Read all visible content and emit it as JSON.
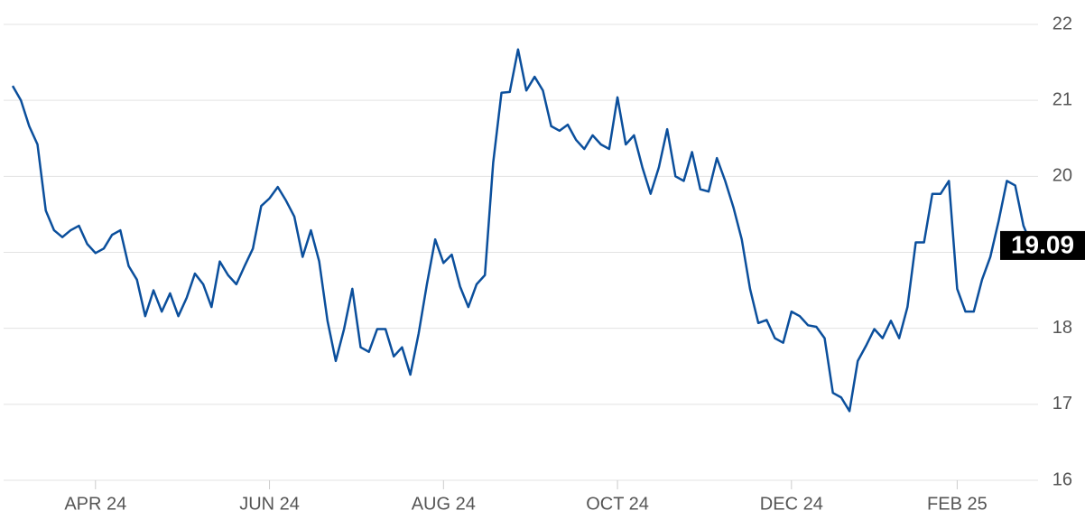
{
  "chart_data": {
    "type": "line",
    "categories": [
      null,
      null,
      null,
      null,
      null,
      null,
      null,
      null,
      null,
      null,
      "APR 24",
      null,
      null,
      null,
      null,
      null,
      null,
      null,
      null,
      null,
      null,
      null,
      null,
      null,
      null,
      null,
      null,
      null,
      null,
      null,
      null,
      "JUN 24",
      null,
      null,
      null,
      null,
      null,
      null,
      null,
      null,
      null,
      null,
      null,
      null,
      null,
      null,
      null,
      null,
      null,
      null,
      null,
      null,
      "AUG 24",
      null,
      null,
      null,
      null,
      null,
      null,
      null,
      null,
      null,
      null,
      null,
      null,
      null,
      null,
      null,
      null,
      null,
      null,
      null,
      null,
      "OCT 24",
      null,
      null,
      null,
      null,
      null,
      null,
      null,
      null,
      null,
      null,
      null,
      null,
      null,
      null,
      null,
      null,
      null,
      null,
      null,
      null,
      "DEC 24",
      null,
      null,
      null,
      null,
      null,
      null,
      null,
      null,
      null,
      null,
      null,
      null,
      null,
      null,
      null,
      null,
      null,
      null,
      null,
      "FEB 25",
      null,
      null,
      null,
      null,
      null,
      null,
      null,
      null,
      null
    ],
    "series": [
      {
        "color": "#0b4f9c",
        "values": [
          21.19,
          21.0,
          20.66,
          20.42,
          19.55,
          19.29,
          19.2,
          19.29,
          19.35,
          19.11,
          18.99,
          19.05,
          19.23,
          19.29,
          18.82,
          18.64,
          18.16,
          18.5,
          18.22,
          18.46,
          18.16,
          18.4,
          18.72,
          18.58,
          18.28,
          18.88,
          18.7,
          18.58,
          18.82,
          19.05,
          19.61,
          19.71,
          19.86,
          19.68,
          19.47,
          18.94,
          19.29,
          18.88,
          18.1,
          17.57,
          17.99,
          18.52,
          17.75,
          17.69,
          17.99,
          17.99,
          17.63,
          17.75,
          17.39,
          17.93,
          18.58,
          19.17,
          18.86,
          18.97,
          18.55,
          18.28,
          18.58,
          18.7,
          20.18,
          21.1,
          21.11,
          21.67,
          21.13,
          21.31,
          21.13,
          20.66,
          20.6,
          20.68,
          20.48,
          20.36,
          20.54,
          20.42,
          20.36,
          21.04,
          20.42,
          20.54,
          20.12,
          19.77,
          20.12,
          20.62,
          20.0,
          19.94,
          20.32,
          19.83,
          19.8,
          20.24,
          19.94,
          19.59,
          19.17,
          18.52,
          18.07,
          18.11,
          17.87,
          17.81,
          18.22,
          18.16,
          18.04,
          18.02,
          17.87,
          17.15,
          17.09,
          16.91,
          17.57,
          17.77,
          17.99,
          17.87,
          18.1,
          17.87,
          18.28,
          19.13,
          19.13,
          19.77,
          19.77,
          19.94,
          18.52,
          18.22,
          18.22,
          18.64,
          18.94,
          19.41,
          19.94,
          19.88,
          19.35,
          19.09
        ]
      }
    ],
    "ylim": [
      16,
      22
    ],
    "yticks": [
      16,
      17,
      18,
      19,
      20,
      21,
      22
    ],
    "grid": true
  }
}
